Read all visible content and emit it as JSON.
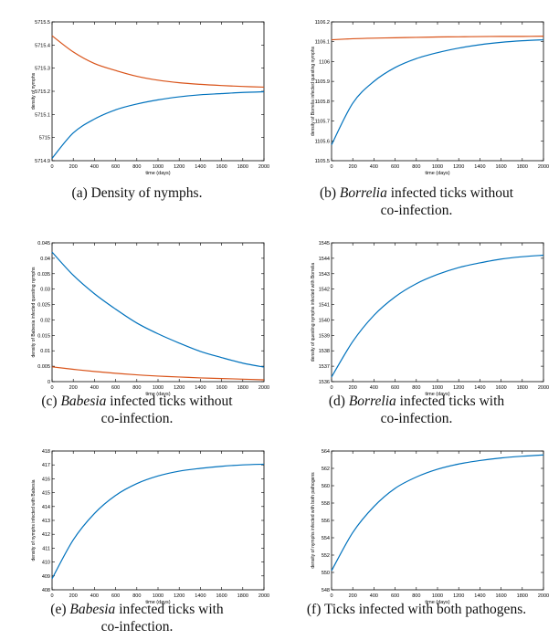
{
  "chart_data": [
    {
      "type": "line",
      "xlabel": "time (days)",
      "ylabel": "density of nymphs",
      "xlim": [
        0,
        2000
      ],
      "ylim": [
        5714.9,
        5715.5
      ],
      "xticks": [
        "0",
        "200",
        "400",
        "600",
        "800",
        "1000",
        "1200",
        "1400",
        "1600",
        "1800",
        "2000"
      ],
      "yticks": [
        "5714.9",
        "5715",
        "5715.1",
        "5715.2",
        "5715.3",
        "5715.4",
        "5715.5"
      ],
      "series": [
        {
          "color": "#d95319",
          "x": [
            0,
            200,
            400,
            600,
            800,
            1000,
            1200,
            1400,
            1600,
            1800,
            2000
          ],
          "y": [
            5715.44,
            5715.37,
            5715.32,
            5715.29,
            5715.265,
            5715.248,
            5715.237,
            5715.23,
            5715.225,
            5715.221,
            5715.218
          ]
        },
        {
          "color": "#0072bd",
          "x": [
            0,
            200,
            400,
            600,
            800,
            1000,
            1200,
            1400,
            1600,
            1800,
            2000
          ],
          "y": [
            5714.91,
            5715.02,
            5715.08,
            5715.12,
            5715.145,
            5715.163,
            5715.176,
            5715.185,
            5715.19,
            5715.195,
            5715.198
          ]
        }
      ],
      "caption": {
        "prefix": "(a) Density of nymphs.",
        "italic": "",
        "suffix": "",
        "line2": ""
      }
    },
    {
      "type": "line",
      "xlabel": "time (days)",
      "ylabel": "density of Borrelia infected questing nymphs",
      "xlim": [
        0,
        2000
      ],
      "ylim": [
        1105.5,
        1106.2
      ],
      "xticks": [
        "0",
        "200",
        "400",
        "600",
        "800",
        "1000",
        "1200",
        "1400",
        "1600",
        "1800",
        "2000"
      ],
      "yticks": [
        "1105.5",
        "1105.6",
        "1105.7",
        "1105.8",
        "1105.9",
        "1106",
        "1106.1",
        "1106.2"
      ],
      "series": [
        {
          "color": "#d95319",
          "x": [
            0,
            200,
            400,
            600,
            800,
            1000,
            1200,
            1400,
            1600,
            1800,
            2000
          ],
          "y": [
            1106.11,
            1106.115,
            1106.118,
            1106.12,
            1106.122,
            1106.124,
            1106.125,
            1106.126,
            1106.127,
            1106.127,
            1106.128
          ]
        },
        {
          "color": "#0072bd",
          "x": [
            0,
            200,
            400,
            600,
            800,
            1000,
            1200,
            1400,
            1600,
            1800,
            2000
          ],
          "y": [
            1105.58,
            1105.79,
            1105.9,
            1105.97,
            1106.015,
            1106.045,
            1106.068,
            1106.085,
            1106.097,
            1106.105,
            1106.11
          ]
        }
      ],
      "caption": {
        "prefix": "(b) ",
        "italic": "Borrelia",
        "suffix": " infected ticks without",
        "line2": "co-infection."
      }
    },
    {
      "type": "line",
      "xlabel": "time (days)",
      "ylabel": "density of Babesia infected questing nymphs",
      "xlim": [
        0,
        2000
      ],
      "ylim": [
        0,
        0.045
      ],
      "xticks": [
        "0",
        "200",
        "400",
        "600",
        "800",
        "1000",
        "1200",
        "1400",
        "1600",
        "1800",
        "2000"
      ],
      "yticks": [
        "0",
        "0.005",
        "0.01",
        "0.015",
        "0.02",
        "0.025",
        "0.03",
        "0.035",
        "0.04",
        "0.045"
      ],
      "series": [
        {
          "color": "#d95319",
          "x": [
            0,
            200,
            400,
            600,
            800,
            1000,
            1200,
            1400,
            1600,
            1800,
            2000
          ],
          "y": [
            0.0048,
            0.004,
            0.0033,
            0.0027,
            0.0022,
            0.0018,
            0.0015,
            0.0012,
            0.001,
            0.0008,
            0.0006
          ]
        },
        {
          "color": "#0072bd",
          "x": [
            0,
            200,
            400,
            600,
            800,
            1000,
            1200,
            1400,
            1600,
            1800,
            2000
          ],
          "y": [
            0.042,
            0.0345,
            0.0285,
            0.0235,
            0.019,
            0.0155,
            0.0125,
            0.0098,
            0.0078,
            0.006,
            0.0047
          ]
        }
      ],
      "caption": {
        "prefix": "(c) ",
        "italic": "Babesia",
        "suffix": " infected ticks without",
        "line2": "co-infection."
      }
    },
    {
      "type": "line",
      "xlabel": "time (days)",
      "ylabel": "density of questing nymphs infected with Borrelia",
      "xlim": [
        0,
        2000
      ],
      "ylim": [
        1536,
        1545
      ],
      "xticks": [
        "0",
        "200",
        "400",
        "600",
        "800",
        "1000",
        "1200",
        "1400",
        "1600",
        "1800",
        "2000"
      ],
      "yticks": [
        "1536",
        "1537",
        "1538",
        "1539",
        "1540",
        "1541",
        "1542",
        "1543",
        "1544",
        "1545"
      ],
      "series": [
        {
          "color": "#0072bd",
          "x": [
            0,
            200,
            400,
            600,
            800,
            1000,
            1200,
            1400,
            1600,
            1800,
            2000
          ],
          "y": [
            1536.3,
            1538.6,
            1540.3,
            1541.5,
            1542.35,
            1542.95,
            1543.4,
            1543.7,
            1543.95,
            1544.1,
            1544.2
          ]
        }
      ],
      "caption": {
        "prefix": "(d) ",
        "italic": "Borrelia",
        "suffix": " infected ticks with",
        "line2": "co-infection."
      }
    },
    {
      "type": "line",
      "xlabel": "time (days)",
      "ylabel": "density of nymphs infected with Babesia",
      "xlim": [
        0,
        2000
      ],
      "ylim": [
        408,
        418
      ],
      "xticks": [
        "0",
        "200",
        "400",
        "600",
        "800",
        "1000",
        "1200",
        "1400",
        "1600",
        "1800",
        "2000"
      ],
      "yticks": [
        "408",
        "409",
        "410",
        "411",
        "412",
        "413",
        "414",
        "415",
        "416",
        "417",
        "418"
      ],
      "series": [
        {
          "color": "#0072bd",
          "x": [
            0,
            200,
            400,
            600,
            800,
            1000,
            1200,
            1400,
            1600,
            1800,
            2000
          ],
          "y": [
            408.8,
            411.6,
            413.5,
            414.8,
            415.65,
            416.2,
            416.55,
            416.75,
            416.9,
            417.0,
            417.05
          ]
        }
      ],
      "caption": {
        "prefix": "(e) ",
        "italic": "Babesia",
        "suffix": " infected ticks with",
        "line2": "co-infection."
      }
    },
    {
      "type": "line",
      "xlabel": "time (days)",
      "ylabel": "density of nymphs infected with both pathogens",
      "xlim": [
        0,
        2000
      ],
      "ylim": [
        548,
        564
      ],
      "xticks": [
        "0",
        "200",
        "400",
        "600",
        "800",
        "1000",
        "1200",
        "1400",
        "1600",
        "1800",
        "2000"
      ],
      "yticks": [
        "548",
        "550",
        "552",
        "554",
        "556",
        "558",
        "560",
        "562",
        "564"
      ],
      "series": [
        {
          "color": "#0072bd",
          "x": [
            0,
            200,
            400,
            600,
            800,
            1000,
            1200,
            1400,
            1600,
            1800,
            2000
          ],
          "y": [
            550.2,
            554.6,
            557.6,
            559.7,
            561.0,
            561.9,
            562.5,
            562.9,
            563.2,
            563.4,
            563.55
          ]
        }
      ],
      "caption": {
        "prefix": "(f) Ticks infected with both pathogens.",
        "italic": "",
        "suffix": "",
        "line2": ""
      }
    }
  ]
}
